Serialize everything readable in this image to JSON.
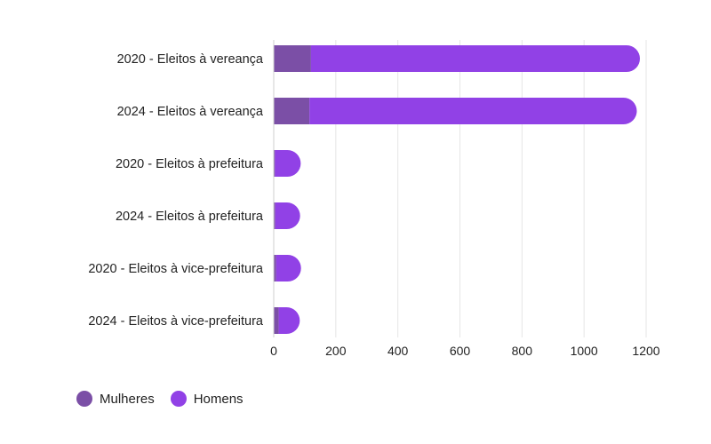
{
  "chart_data": {
    "type": "bar",
    "orientation": "horizontal",
    "stacked": true,
    "categories": [
      "2020 - Eleitos à vereança",
      "2024 - Eleitos à vereança",
      "2020 - Eleitos à prefeitura",
      "2024 - Eleitos à prefeitura",
      "2020 - Eleitos à vice-prefeitura",
      "2024 - Eleitos à vice-prefeitura"
    ],
    "series": [
      {
        "name": "Mulheres",
        "color": "#7b4fa6",
        "values": [
          120,
          115,
          4,
          5,
          8,
          16
        ]
      },
      {
        "name": "Homens",
        "color": "#9141e6",
        "values": [
          1060,
          1055,
          83,
          80,
          80,
          68
        ]
      }
    ],
    "xlim": [
      0,
      1200
    ],
    "xticks": [
      0,
      200,
      400,
      600,
      800,
      1000,
      1200
    ],
    "grid": true,
    "legend_position": "bottom-left",
    "title": "",
    "xlabel": "",
    "ylabel": ""
  }
}
